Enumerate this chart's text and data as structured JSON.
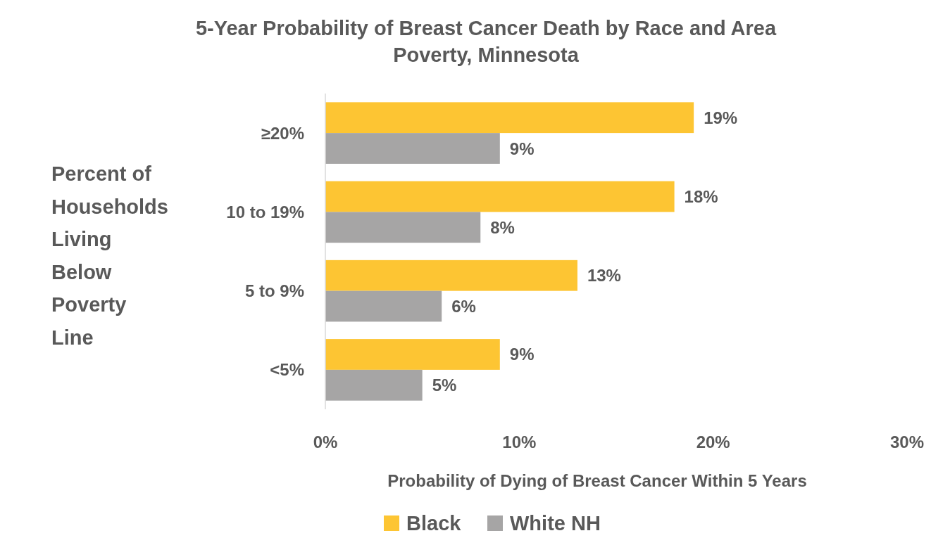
{
  "chart_data": {
    "type": "bar",
    "orientation": "horizontal",
    "title": "5-Year Probability of Breast Cancer Death by Race and Area Poverty, Minnesota",
    "xlabel": "Probability of Dying of Breast Cancer Within 5 Years",
    "ylabel": "Percent of Households Living Below Poverty Line",
    "categories": [
      "≥20%",
      "10 to 19%",
      "5 to 9%",
      "<5%"
    ],
    "series": [
      {
        "name": "Black",
        "color": "#fdc533",
        "values": [
          19,
          18,
          13,
          9
        ],
        "value_labels": [
          "19%",
          "18%",
          "13%",
          "9%"
        ]
      },
      {
        "name": "White NH",
        "color": "#a6a5a5",
        "values": [
          9,
          8,
          6,
          5
        ],
        "value_labels": [
          "9%",
          "8%",
          "6%",
          "5%"
        ]
      }
    ],
    "xlim": [
      0,
      30
    ],
    "xticks": [
      {
        "value": 0,
        "label": "0%"
      },
      {
        "value": 10,
        "label": "10%"
      },
      {
        "value": 20,
        "label": "20%"
      },
      {
        "value": 30,
        "label": "30%"
      }
    ],
    "grid": false,
    "legend": "bottom"
  }
}
